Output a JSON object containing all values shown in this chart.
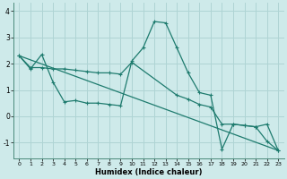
{
  "xlabel": "Humidex (Indice chaleur)",
  "bg_color": "#ceeaea",
  "grid_color": "#afd4d4",
  "line_color": "#1e7b6e",
  "xlim": [
    -0.5,
    23.5
  ],
  "ylim": [
    -1.6,
    4.3
  ],
  "xticks": [
    0,
    1,
    2,
    3,
    4,
    5,
    6,
    7,
    8,
    9,
    10,
    11,
    12,
    13,
    14,
    15,
    16,
    17,
    18,
    19,
    20,
    21,
    22,
    23
  ],
  "yticks": [
    -1,
    0,
    1,
    2,
    3,
    4
  ],
  "line1_x": [
    0,
    1,
    2,
    3,
    4,
    5,
    6,
    7,
    8,
    9,
    10,
    11,
    12,
    13,
    14,
    15,
    16,
    17,
    18,
    19,
    20,
    21,
    22,
    23
  ],
  "line1_y": [
    2.3,
    1.8,
    2.35,
    1.3,
    0.55,
    0.6,
    0.5,
    0.5,
    0.45,
    0.4,
    2.1,
    2.6,
    3.6,
    3.55,
    2.6,
    1.65,
    0.9,
    0.8,
    -1.25,
    -0.3,
    -0.35,
    -0.4,
    -0.95,
    -1.3
  ],
  "line2_x": [
    0,
    1,
    2,
    3,
    4,
    5,
    6,
    7,
    8,
    9,
    10,
    14,
    15,
    16,
    17,
    18,
    19,
    20,
    21,
    22,
    23
  ],
  "line2_y": [
    2.3,
    1.85,
    1.85,
    1.8,
    1.8,
    1.75,
    1.7,
    1.65,
    1.65,
    1.6,
    2.05,
    0.8,
    0.65,
    0.45,
    0.35,
    -0.3,
    -0.3,
    -0.35,
    -0.4,
    -0.3,
    -1.3
  ],
  "line3_x": [
    0,
    23
  ],
  "line3_y": [
    2.3,
    -1.3
  ]
}
